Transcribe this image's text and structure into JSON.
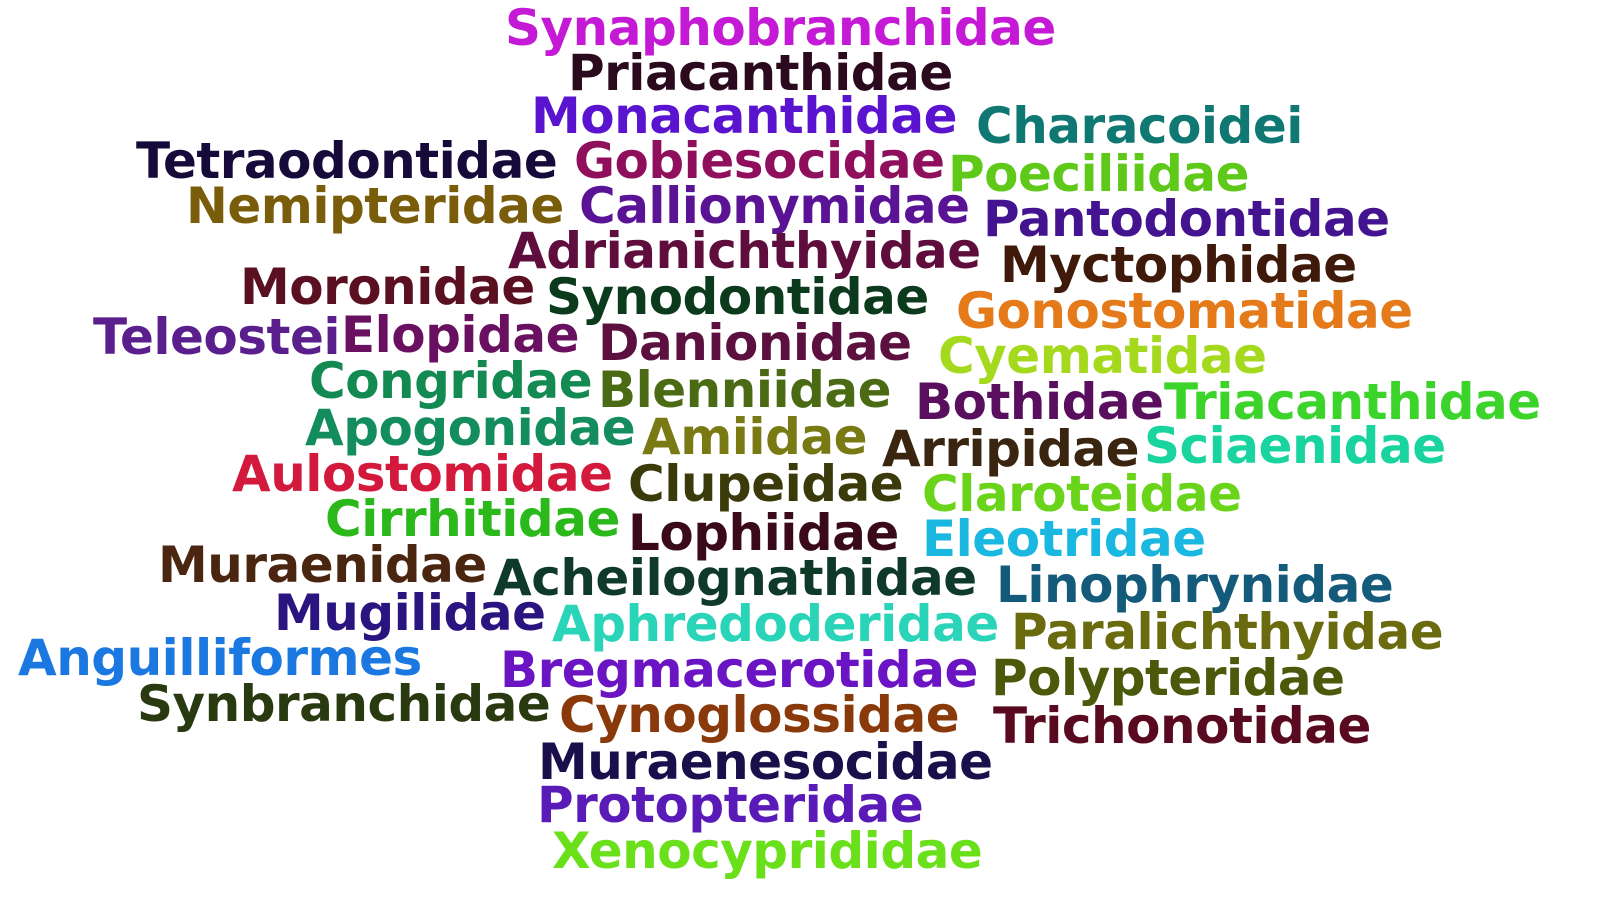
{
  "words": [
    {
      "text": "Synaphobranchidae",
      "color": "#c41ad6"
    },
    {
      "text": "Priacanthidae",
      "color": "#2a0a1c"
    },
    {
      "text": "Monacanthidae",
      "color": "#5a14cf"
    },
    {
      "text": "Characoidei",
      "color": "#0f7872"
    },
    {
      "text": "Tetraodontidae",
      "color": "#150a3a"
    },
    {
      "text": "Gobiesocidae",
      "color": "#8f0f5c"
    },
    {
      "text": "Poeciliidae",
      "color": "#5fc91a"
    },
    {
      "text": "Nemipteridae",
      "color": "#7a5d0a"
    },
    {
      "text": "Callionymidae",
      "color": "#5b1396"
    },
    {
      "text": "Pantodontidae",
      "color": "#44138f"
    },
    {
      "text": "Adrianichthyidae",
      "color": "#5e0d3d"
    },
    {
      "text": "Myctophidae",
      "color": "#3f1a0a"
    },
    {
      "text": "Moronidae",
      "color": "#5a1020"
    },
    {
      "text": "Synodontidae",
      "color": "#0c3a1c"
    },
    {
      "text": "Gonostomatidae",
      "color": "#e57a1a"
    },
    {
      "text": "Teleostei",
      "color": "#5a1f8c"
    },
    {
      "text": "Elopidae",
      "color": "#6a1060"
    },
    {
      "text": "Danionidae",
      "color": "#5c1040"
    },
    {
      "text": "Cyematidae",
      "color": "#a5d91e"
    },
    {
      "text": "Congridae",
      "color": "#138a52"
    },
    {
      "text": "Blenniidae",
      "color": "#4a6b14"
    },
    {
      "text": "Bothidae",
      "color": "#5a0f5e"
    },
    {
      "text": "Triacanthidae",
      "color": "#3cd42a"
    },
    {
      "text": "Apogonidae",
      "color": "#138c5e"
    },
    {
      "text": "Amiidae",
      "color": "#7a7a14"
    },
    {
      "text": "Arripidae",
      "color": "#3a2510"
    },
    {
      "text": "Sciaenidae",
      "color": "#1ad4a0"
    },
    {
      "text": "Aulostomidae",
      "color": "#d41a3c"
    },
    {
      "text": "Clupeidae",
      "color": "#3a3a0a"
    },
    {
      "text": "Claroteidae",
      "color": "#6ad41a"
    },
    {
      "text": "Cirrhitidae",
      "color": "#2ab81a"
    },
    {
      "text": "Lophiidae",
      "color": "#3a0a1a"
    },
    {
      "text": "Eleotridae",
      "color": "#1ab8e0"
    },
    {
      "text": "Muraenidae",
      "color": "#4a2510"
    },
    {
      "text": "Acheilognathidae",
      "color": "#0f3a2a"
    },
    {
      "text": "Linophrynidae",
      "color": "#145a7a"
    },
    {
      "text": "Mugilidae",
      "color": "#2a1480"
    },
    {
      "text": "Aphredoderidae",
      "color": "#2ad4b8"
    },
    {
      "text": "Paralichthyidae",
      "color": "#6a6a0f"
    },
    {
      "text": "Anguilliformes",
      "color": "#1a78e0"
    },
    {
      "text": "Bregmacerotidae",
      "color": "#6a14c4"
    },
    {
      "text": "Polypteridae",
      "color": "#4a5a0a"
    },
    {
      "text": "Synbranchidae",
      "color": "#2a3a10"
    },
    {
      "text": "Cynoglossidae",
      "color": "#8a3a0a"
    },
    {
      "text": "Trichonotidae",
      "color": "#5a0a20"
    },
    {
      "text": "Muraenesocidae",
      "color": "#1a0f4a"
    },
    {
      "text": "Protopteridae",
      "color": "#5a1ab8"
    },
    {
      "text": "Xenocyprididae",
      "color": "#6ae01a"
    }
  ]
}
